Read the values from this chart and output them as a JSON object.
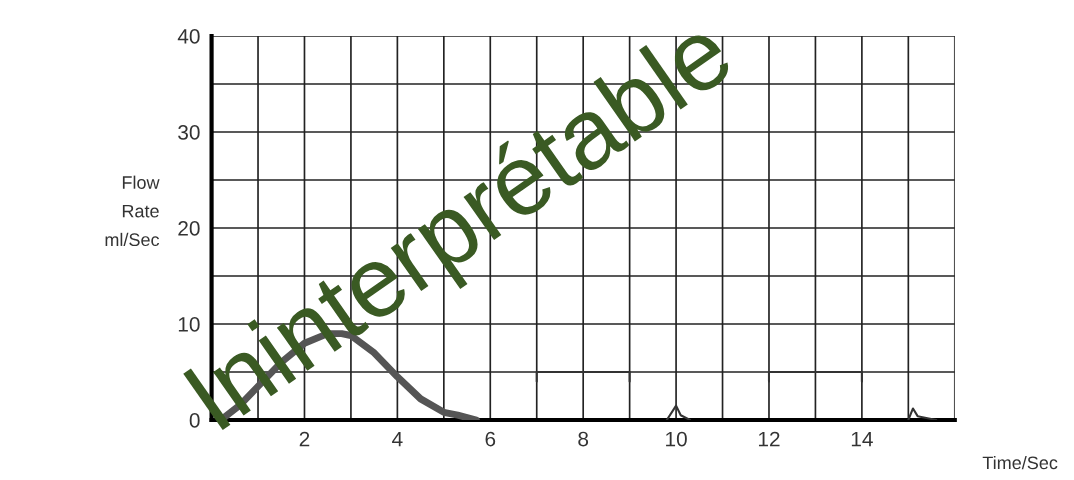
{
  "chart_data": {
    "type": "line",
    "ylabel": "Flow\nRate\nml/Sec",
    "xlabel": "Time/Sec",
    "annotations": [
      "Ininterprétable"
    ],
    "series": [
      {
        "color": "#555555",
        "x": [
          0.2,
          0.6,
          1,
          1.5,
          2,
          2.5,
          2.8,
          3,
          3.5,
          4,
          4.5,
          5,
          5.3,
          5.7
        ],
        "values": [
          0,
          1.5,
          3.5,
          6,
          8,
          9,
          9,
          8.8,
          7,
          4.5,
          2.2,
          0.8,
          0.5,
          0
        ]
      },
      {
        "color": "#333333",
        "x": [
          7,
          7,
          8,
          9,
          9,
          null,
          9.8,
          10,
          10.1,
          10.3,
          null,
          12,
          12,
          13,
          14,
          14,
          null,
          15,
          15.1,
          15.2,
          15.6
        ],
        "values": [
          4,
          5,
          5,
          5,
          4,
          null,
          0,
          1.5,
          0.5,
          0,
          null,
          4,
          5,
          5,
          5,
          4,
          null,
          0,
          1.2,
          0.4,
          0
        ]
      }
    ],
    "xlim": [
      0,
      16
    ],
    "ylim": [
      0,
      40
    ],
    "xticks": [
      2,
      4,
      6,
      8,
      10,
      12,
      14
    ],
    "yticks": [
      0,
      10,
      20,
      30,
      40
    ],
    "grid": true,
    "legend": false
  }
}
